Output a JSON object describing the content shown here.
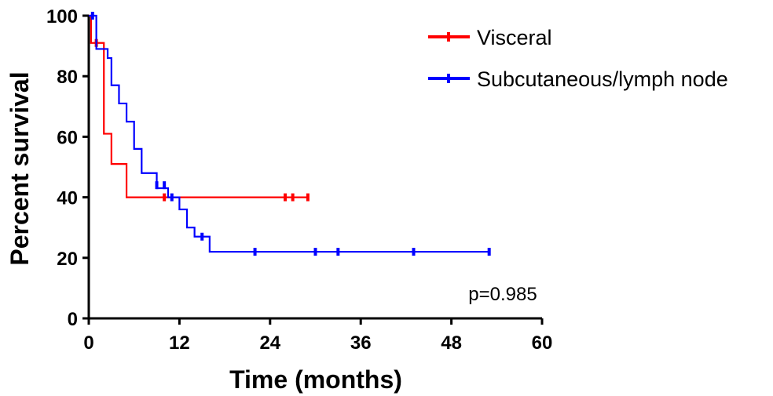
{
  "chart_data": {
    "type": "line",
    "subtype": "kaplan-meier",
    "xlabel": "Time (months)",
    "ylabel": "Percent survival",
    "xlim": [
      0,
      60
    ],
    "ylim": [
      0,
      100
    ],
    "xticks": [
      0,
      12,
      24,
      36,
      48,
      60
    ],
    "yticks": [
      0,
      20,
      40,
      60,
      80,
      100
    ],
    "x_tick_labels": [
      "0",
      "12",
      "24",
      "36",
      "48",
      "60"
    ],
    "y_tick_labels": [
      "0",
      "20",
      "40",
      "60",
      "80",
      "100"
    ],
    "grid": false,
    "legend_position": "top-right",
    "annotation": "p=0.985",
    "series": [
      {
        "name": "Visceral",
        "color": "#ff0000",
        "steps": [
          [
            0,
            100
          ],
          [
            0.3,
            91
          ],
          [
            2,
            61
          ],
          [
            3,
            51
          ],
          [
            5,
            40
          ],
          [
            29,
            40
          ]
        ],
        "censored": [
          [
            1,
            91
          ],
          [
            10,
            40
          ],
          [
            26,
            40
          ],
          [
            27,
            40
          ],
          [
            29,
            40
          ]
        ]
      },
      {
        "name": "Subcutaneous/lymph node",
        "color": "#0000ff",
        "steps": [
          [
            0,
            100
          ],
          [
            1,
            89
          ],
          [
            2.5,
            86
          ],
          [
            3,
            77
          ],
          [
            4,
            71
          ],
          [
            5,
            65
          ],
          [
            6,
            56
          ],
          [
            7,
            48
          ],
          [
            9,
            43
          ],
          [
            10.5,
            40
          ],
          [
            12,
            36
          ],
          [
            13,
            30
          ],
          [
            14,
            27
          ],
          [
            16,
            22
          ],
          [
            53,
            22
          ]
        ],
        "censored": [
          [
            0.5,
            100
          ],
          [
            9,
            44
          ],
          [
            10,
            44
          ],
          [
            11,
            40
          ],
          [
            15,
            27
          ],
          [
            22,
            22
          ],
          [
            30,
            22
          ],
          [
            33,
            22
          ],
          [
            43,
            22
          ],
          [
            53,
            22
          ]
        ]
      }
    ]
  }
}
